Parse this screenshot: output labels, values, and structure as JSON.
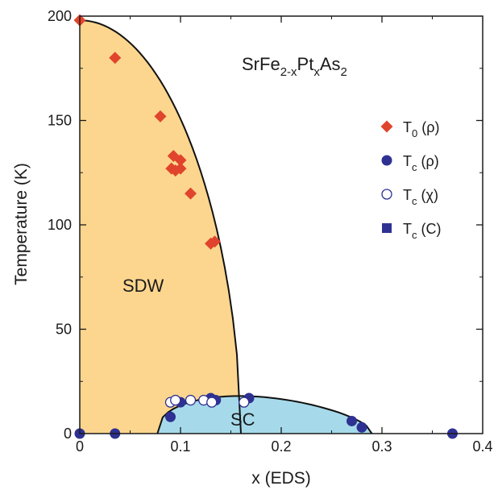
{
  "chart_data": {
    "type": "scatter",
    "title_parts": {
      "p1": "SrFe",
      "s1": "2-x",
      "p2": "Pt",
      "s2": "x",
      "p3": "As",
      "s3": "2"
    },
    "xlabel": "x (EDS)",
    "ylabel": "Temperature (K)",
    "xlim": [
      0,
      0.4
    ],
    "ylim": [
      0,
      200
    ],
    "x_ticks": [
      {
        "value": 0,
        "label": "0"
      },
      {
        "value": 0.1,
        "label": "0.1"
      },
      {
        "value": 0.2,
        "label": "0.2"
      },
      {
        "value": 0.3,
        "label": "0.3"
      },
      {
        "value": 0.4,
        "label": "0.4"
      }
    ],
    "y_ticks": [
      {
        "value": 0,
        "label": "0"
      },
      {
        "value": 50,
        "label": "50"
      },
      {
        "value": 100,
        "label": "100"
      },
      {
        "value": 150,
        "label": "150"
      },
      {
        "value": 200,
        "label": "200"
      }
    ],
    "regions": [
      {
        "label": "SDW",
        "color": "#fcd68e"
      },
      {
        "label": "SC",
        "color": "#a6daea"
      }
    ],
    "legend_position": "right",
    "series": [
      {
        "name_main": "T",
        "name_sub": "0",
        "name_suffix": " (ρ)",
        "marker": "diamond",
        "color": "#e0442c",
        "points": [
          [
            0,
            198
          ],
          [
            0.035,
            180
          ],
          [
            0.08,
            152
          ],
          [
            0.093,
            133
          ],
          [
            0.1,
            131
          ],
          [
            0.091,
            127
          ],
          [
            0.095,
            126
          ],
          [
            0.1,
            127
          ],
          [
            0.11,
            115
          ],
          [
            0.13,
            91
          ],
          [
            0.134,
            92
          ]
        ]
      },
      {
        "name_main": "T",
        "name_sub": "c",
        "name_suffix": " (ρ)",
        "marker": "filled-circle",
        "color": "#2e3192",
        "points": [
          [
            0,
            0
          ],
          [
            0.035,
            0
          ],
          [
            0.09,
            8
          ],
          [
            0.1,
            15
          ],
          [
            0.13,
            17
          ],
          [
            0.135,
            16
          ],
          [
            0.168,
            17
          ],
          [
            0.27,
            6
          ],
          [
            0.28,
            3
          ],
          [
            0.37,
            0
          ]
        ]
      },
      {
        "name_main": "T",
        "name_sub": "c",
        "name_suffix": " (χ)",
        "marker": "open-circle",
        "color": "#2e3192",
        "points": [
          [
            0.09,
            15
          ],
          [
            0.095,
            16
          ],
          [
            0.11,
            16
          ],
          [
            0.123,
            16
          ],
          [
            0.131,
            15
          ],
          [
            0.163,
            15
          ]
        ]
      },
      {
        "name_main": "T",
        "name_sub": "c",
        "name_suffix": " (C)",
        "marker": "filled-square",
        "color": "#2e3192",
        "points": []
      }
    ]
  }
}
